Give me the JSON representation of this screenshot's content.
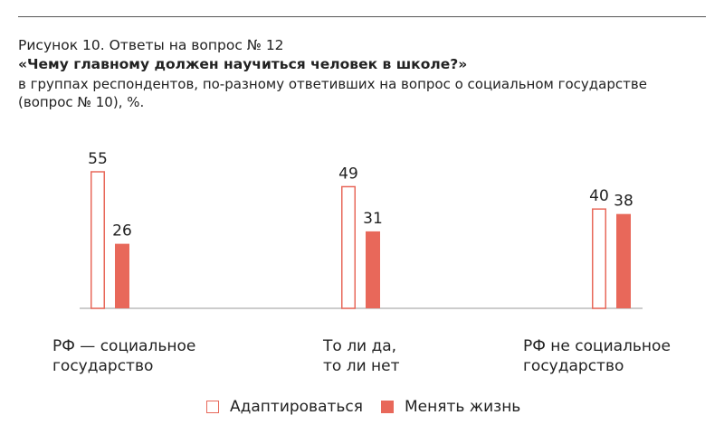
{
  "title": {
    "line1": "Рисунок 10. Ответы на вопрос № 12",
    "line2": "«Чему главному должен научиться человек в школе?»",
    "line3": "в группах респондентов, по-разному ответивших на вопрос о социальном государстве",
    "line4": "(вопрос № 10), %."
  },
  "chart_data": {
    "type": "bar",
    "categories": [
      "РФ — социальное\nгосударство",
      "То ли да,\nто ли нет",
      "РФ не социальное\nгосударство"
    ],
    "series": [
      {
        "name": "Адаптироваться",
        "values": [
          55,
          49,
          40
        ],
        "color": "#e8685a",
        "style": "hollow"
      },
      {
        "name": "Менять жизнь",
        "values": [
          26,
          31,
          38
        ],
        "color": "#e8685a",
        "style": "filled"
      }
    ],
    "ylim": [
      0,
      55
    ],
    "grid": false,
    "legend": "bottom"
  }
}
